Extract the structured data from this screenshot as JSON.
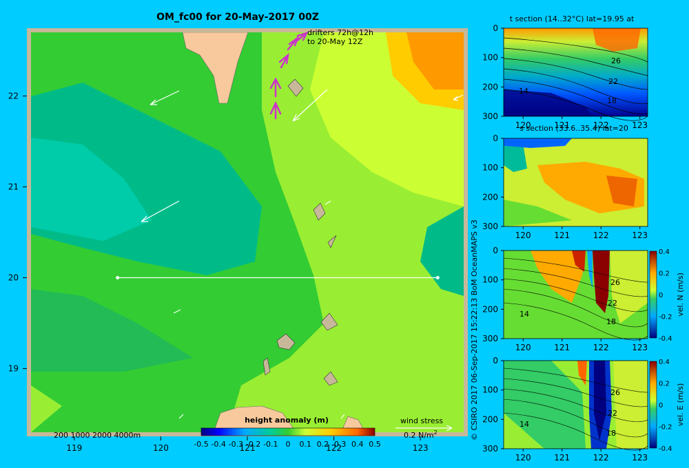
{
  "chart_data": [
    {
      "type": "heatmap",
      "title": "OM_fc00 for 20-May-2017 00Z",
      "x_ticks": [
        "119",
        "120",
        "121",
        "122",
        "123"
      ],
      "x_tick_values": [
        119,
        120,
        121,
        122,
        123
      ],
      "y_ticks": [
        "19",
        "20",
        "21",
        "22"
      ],
      "y_tick_values": [
        19,
        20,
        21,
        22
      ],
      "xlim": [
        118.5,
        123.5
      ],
      "ylim": [
        18.3,
        22.7
      ],
      "section_line": {
        "lat": 20,
        "lon": [
          119.5,
          123.2
        ]
      },
      "drifters_label": [
        "drifters 72h@12h",
        "to 20-May 12Z"
      ],
      "depth_label": "200  1000  2000  4000m",
      "colorbar": {
        "label": "height anomaly (m)",
        "ticks": [
          "-0.5",
          "-0.4",
          "-0.3",
          "-0.2",
          "-0.1",
          "0",
          "0.1",
          "0.2",
          "0.3",
          "0.4",
          "0.5"
        ],
        "range": [
          -0.5,
          0.5
        ]
      },
      "wind_stress_label": "wind stress",
      "wind_stress_scale": "0.2 N/m",
      "wind_stress_exp": "2"
    },
    {
      "type": "heatmap",
      "title": "t section (14..32°C) lat=19.95 at",
      "xticks": [
        "120",
        "121",
        "122",
        "123"
      ],
      "yticks": [
        "0",
        "100",
        "200",
        "300"
      ],
      "x_tick_values": [
        120,
        121,
        122,
        123
      ],
      "y_tick_values": [
        0,
        100,
        200,
        300
      ],
      "xlim": [
        119.5,
        123.2
      ],
      "ylim": [
        0,
        300
      ],
      "contour_labels": [
        "26",
        "22",
        "18",
        "14"
      ]
    },
    {
      "type": "heatmap",
      "title": "s section (33.6..35.4) lat=20",
      "xticks": [
        "120",
        "121",
        "122",
        "123"
      ],
      "yticks": [
        "0",
        "100",
        "200",
        "300"
      ],
      "x_tick_values": [
        120,
        121,
        122,
        123
      ],
      "y_tick_values": [
        0,
        100,
        200,
        300
      ],
      "xlim": [
        119.5,
        123.2
      ],
      "ylim": [
        0,
        300
      ]
    },
    {
      "type": "heatmap",
      "title": "",
      "xticks": [
        "120",
        "121",
        "122",
        "123"
      ],
      "yticks": [
        "0",
        "100",
        "200",
        "300"
      ],
      "x_tick_values": [
        120,
        121,
        122,
        123
      ],
      "y_tick_values": [
        0,
        100,
        200,
        300
      ],
      "xlim": [
        119.5,
        123.2
      ],
      "ylim": [
        0,
        300
      ],
      "contour_labels": [
        "26",
        "22",
        "18",
        "14"
      ],
      "colorbar": {
        "label": "vel. N (m/s)",
        "ticks": [
          "0.4",
          "0.2",
          "0",
          "-0.2",
          "-0.4"
        ],
        "range": [
          -0.4,
          0.4
        ]
      }
    },
    {
      "type": "heatmap",
      "title": "",
      "xticks": [
        "120",
        "121",
        "122",
        "123"
      ],
      "yticks": [
        "0",
        "100",
        "200",
        "300"
      ],
      "x_tick_values": [
        120,
        121,
        122,
        123
      ],
      "y_tick_values": [
        0,
        100,
        200,
        300
      ],
      "xlim": [
        119.5,
        123.2
      ],
      "ylim": [
        0,
        300
      ],
      "contour_labels": [
        "26",
        "22",
        "18",
        "14"
      ],
      "colorbar": {
        "label": "vel. E (m/s)",
        "ticks": [
          "0.4",
          "0.2",
          "0",
          "-0.2",
          "-0.4"
        ],
        "range": [
          -0.4,
          0.4
        ]
      }
    }
  ],
  "credit": "© CSIRO 2017   06-Sep-2017 15:22:13 BoM OceanMAPS v3",
  "colors": {
    "background": "#00ccff",
    "border": "#c8b89a",
    "land": "#f7c99c",
    "arrow": "#ffffff",
    "drifter": "#cc33cc"
  }
}
